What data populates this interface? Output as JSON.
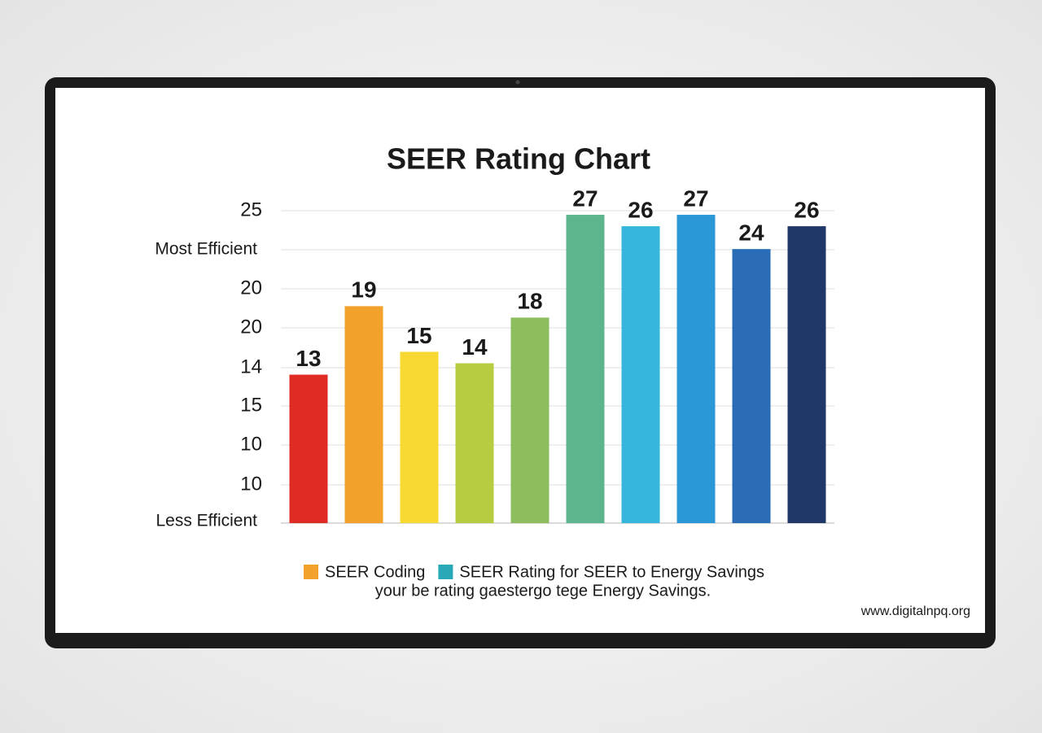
{
  "chart_data": {
    "type": "bar",
    "title": "SEER Rating Chart",
    "values": [
      13,
      19,
      15,
      14,
      18,
      27,
      26,
      27,
      24,
      26
    ],
    "colors": [
      "#e02a24",
      "#f2a22a",
      "#f8d832",
      "#b8cc42",
      "#8dbd5c",
      "#5db58e",
      "#36b6dc",
      "#2a97d6",
      "#2a6cb5",
      "#1f3868"
    ],
    "ylim": [
      0,
      28
    ],
    "y_axis_labels": [
      "25",
      "Most Efficient",
      "20",
      "20",
      "14",
      "15",
      "10",
      "10",
      "Less Efficient"
    ],
    "grid": true,
    "legend": [
      {
        "label": "SEER Coding",
        "color": "#f2a22a"
      },
      {
        "label": "SEER Rating for SEER to Energy Savings",
        "color": "#2aa8b8"
      }
    ],
    "caption": "your be rating gaestergo tege Energy Savings.",
    "footer": "www.digitalnpq.org"
  }
}
